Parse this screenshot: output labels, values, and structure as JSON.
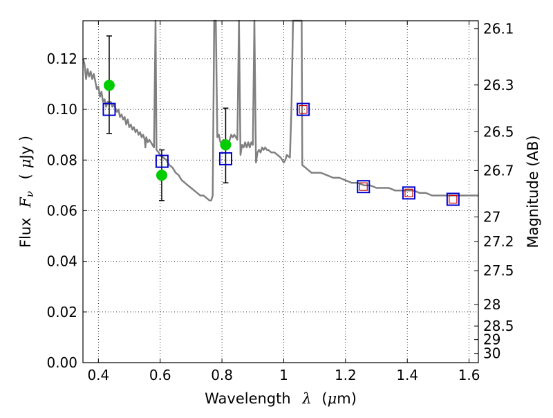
{
  "chart_data": {
    "type": "scatter",
    "xlabel": "Wavelength",
    "xlabel_symbol": "λ",
    "xlabel_unit_open": "(",
    "xlabel_unit_mu": "μ",
    "xlabel_unit_rest": "m)",
    "ylabel": "Flux",
    "ylabel_symbol": "F",
    "ylabel_sub": "ν",
    "ylabel_unit_open": "(",
    "ylabel_unit_mu": "μ",
    "ylabel_unit_rest": "Jy )",
    "y2label": "Magnitude (AB)",
    "xlim": [
      0.35,
      1.63
    ],
    "ylim": [
      0.0,
      0.135
    ],
    "grid": true,
    "x_ticks": [
      {
        "value": 0.4,
        "label": "0.4"
      },
      {
        "value": 0.6,
        "label": "0.6"
      },
      {
        "value": 0.8,
        "label": "0.8"
      },
      {
        "value": 1.0,
        "label": "1"
      },
      {
        "value": 1.2,
        "label": "1.2"
      },
      {
        "value": 1.4,
        "label": "1.4"
      },
      {
        "value": 1.6,
        "label": "1.6"
      }
    ],
    "y_ticks": [
      {
        "value": 0.0,
        "label": "0.00"
      },
      {
        "value": 0.02,
        "label": "0.02"
      },
      {
        "value": 0.04,
        "label": "0.04"
      },
      {
        "value": 0.06,
        "label": "0.06"
      },
      {
        "value": 0.08,
        "label": "0.08"
      },
      {
        "value": 0.1,
        "label": "0.10"
      },
      {
        "value": 0.12,
        "label": "0.12"
      }
    ],
    "mag_ticks": [
      {
        "value": 26.1,
        "label": "26.1"
      },
      {
        "value": 26.3,
        "label": "26.3"
      },
      {
        "value": 26.5,
        "label": "26.5"
      },
      {
        "value": 26.7,
        "label": "26.7"
      },
      {
        "value": 27.0,
        "label": "27"
      },
      {
        "value": 27.2,
        "label": "27.2"
      },
      {
        "value": 27.5,
        "label": "27.5"
      },
      {
        "value": 28.0,
        "label": "28"
      },
      {
        "value": 28.5,
        "label": "28.5"
      },
      {
        "value": 29.0,
        "label": "29"
      },
      {
        "value": 30.0,
        "label": "30"
      }
    ],
    "model_color": "#808080",
    "observed_color": "#00cc00",
    "model_phot_color": "#0000cc",
    "upper_color": "#cc0000",
    "model_spectrum": [
      [
        0.35,
        0.12
      ],
      [
        0.355,
        0.118
      ],
      [
        0.36,
        0.112
      ],
      [
        0.365,
        0.116
      ],
      [
        0.37,
        0.113
      ],
      [
        0.375,
        0.115
      ],
      [
        0.38,
        0.112
      ],
      [
        0.385,
        0.114
      ],
      [
        0.39,
        0.111
      ],
      [
        0.395,
        0.108
      ],
      [
        0.4,
        0.109
      ],
      [
        0.405,
        0.105
      ],
      [
        0.41,
        0.107
      ],
      [
        0.415,
        0.103
      ],
      [
        0.42,
        0.104
      ],
      [
        0.425,
        0.101
      ],
      [
        0.43,
        0.103
      ],
      [
        0.435,
        0.102
      ],
      [
        0.44,
        0.103
      ],
      [
        0.445,
        0.101
      ],
      [
        0.45,
        0.102
      ],
      [
        0.46,
        0.099
      ],
      [
        0.465,
        0.1
      ],
      [
        0.47,
        0.097
      ],
      [
        0.475,
        0.098
      ],
      [
        0.48,
        0.096
      ],
      [
        0.485,
        0.097
      ],
      [
        0.49,
        0.094
      ],
      [
        0.495,
        0.096
      ],
      [
        0.5,
        0.093
      ],
      [
        0.505,
        0.094
      ],
      [
        0.51,
        0.092
      ],
      [
        0.515,
        0.093
      ],
      [
        0.52,
        0.091
      ],
      [
        0.525,
        0.092
      ],
      [
        0.53,
        0.09
      ],
      [
        0.535,
        0.091
      ],
      [
        0.54,
        0.089
      ],
      [
        0.545,
        0.09
      ],
      [
        0.55,
        0.088
      ],
      [
        0.552,
        0.085
      ],
      [
        0.555,
        0.089
      ],
      [
        0.56,
        0.087
      ],
      [
        0.565,
        0.088
      ],
      [
        0.57,
        0.087
      ],
      [
        0.575,
        0.086
      ],
      [
        0.58,
        0.085
      ],
      [
        0.585,
        0.135
      ],
      [
        0.588,
        0.084
      ],
      [
        0.595,
        0.083
      ],
      [
        0.6,
        0.082
      ],
      [
        0.61,
        0.081
      ],
      [
        0.62,
        0.08
      ],
      [
        0.63,
        0.078
      ],
      [
        0.64,
        0.077
      ],
      [
        0.65,
        0.075
      ],
      [
        0.66,
        0.074
      ],
      [
        0.67,
        0.072
      ],
      [
        0.68,
        0.071
      ],
      [
        0.69,
        0.07
      ],
      [
        0.7,
        0.069
      ],
      [
        0.71,
        0.068
      ],
      [
        0.72,
        0.067
      ],
      [
        0.73,
        0.066
      ],
      [
        0.74,
        0.066
      ],
      [
        0.75,
        0.065
      ],
      [
        0.76,
        0.064
      ],
      [
        0.765,
        0.064
      ],
      [
        0.77,
        0.066
      ],
      [
        0.775,
        0.135
      ],
      [
        0.78,
        0.135
      ],
      [
        0.785,
        0.089
      ],
      [
        0.79,
        0.09
      ],
      [
        0.795,
        0.087
      ],
      [
        0.8,
        0.086
      ],
      [
        0.805,
        0.088
      ],
      [
        0.81,
        0.085
      ],
      [
        0.815,
        0.087
      ],
      [
        0.82,
        0.086
      ],
      [
        0.825,
        0.088
      ],
      [
        0.83,
        0.09
      ],
      [
        0.835,
        0.089
      ],
      [
        0.84,
        0.09
      ],
      [
        0.845,
        0.089
      ],
      [
        0.85,
        0.088
      ],
      [
        0.855,
        0.135
      ],
      [
        0.86,
        0.082
      ],
      [
        0.865,
        0.086
      ],
      [
        0.87,
        0.085
      ],
      [
        0.875,
        0.087
      ],
      [
        0.88,
        0.085
      ],
      [
        0.885,
        0.087
      ],
      [
        0.89,
        0.085
      ],
      [
        0.895,
        0.087
      ],
      [
        0.9,
        0.086
      ],
      [
        0.905,
        0.135
      ],
      [
        0.91,
        0.079
      ],
      [
        0.915,
        0.083
      ],
      [
        0.92,
        0.084
      ],
      [
        0.925,
        0.083
      ],
      [
        0.93,
        0.085
      ],
      [
        0.935,
        0.084
      ],
      [
        0.94,
        0.085
      ],
      [
        0.945,
        0.084
      ],
      [
        0.95,
        0.084
      ],
      [
        0.96,
        0.083
      ],
      [
        0.97,
        0.083
      ],
      [
        0.98,
        0.082
      ],
      [
        0.99,
        0.081
      ],
      [
        1.0,
        0.079
      ],
      [
        1.005,
        0.08
      ],
      [
        1.01,
        0.082
      ],
      [
        1.02,
        0.081
      ],
      [
        1.025,
        0.1
      ],
      [
        1.03,
        0.135
      ],
      [
        1.058,
        0.135
      ],
      [
        1.06,
        0.078
      ],
      [
        1.07,
        0.077
      ],
      [
        1.08,
        0.076
      ],
      [
        1.09,
        0.075
      ],
      [
        1.1,
        0.075
      ],
      [
        1.12,
        0.075
      ],
      [
        1.14,
        0.074
      ],
      [
        1.16,
        0.073
      ],
      [
        1.18,
        0.073
      ],
      [
        1.2,
        0.072
      ],
      [
        1.22,
        0.071
      ],
      [
        1.24,
        0.071
      ],
      [
        1.26,
        0.07
      ],
      [
        1.28,
        0.07
      ],
      [
        1.3,
        0.069
      ],
      [
        1.32,
        0.069
      ],
      [
        1.34,
        0.069
      ],
      [
        1.36,
        0.068
      ],
      [
        1.38,
        0.068
      ],
      [
        1.4,
        0.068
      ],
      [
        1.42,
        0.068
      ],
      [
        1.44,
        0.067
      ],
      [
        1.46,
        0.067
      ],
      [
        1.48,
        0.066
      ],
      [
        1.5,
        0.066
      ],
      [
        1.52,
        0.066
      ],
      [
        1.54,
        0.066
      ],
      [
        1.56,
        0.066
      ],
      [
        1.58,
        0.066
      ],
      [
        1.6,
        0.066
      ],
      [
        1.63,
        0.066
      ]
    ],
    "observed": [
      {
        "x": 0.435,
        "y": 0.1095,
        "yerr_low": 0.0905,
        "yerr_high": 0.129
      },
      {
        "x": 0.605,
        "y": 0.074,
        "yerr_low": 0.064,
        "yerr_high": 0.084
      },
      {
        "x": 0.812,
        "y": 0.086,
        "yerr_low": 0.071,
        "yerr_high": 0.1005
      }
    ],
    "model_photometry": [
      {
        "x": 0.435,
        "y": 0.1
      },
      {
        "x": 0.606,
        "y": 0.0795
      },
      {
        "x": 0.812,
        "y": 0.0805
      },
      {
        "x": 1.063,
        "y": 0.1
      },
      {
        "x": 1.258,
        "y": 0.0695
      },
      {
        "x": 1.405,
        "y": 0.067
      },
      {
        "x": 1.548,
        "y": 0.0645
      }
    ],
    "upper_photometry": [
      {
        "x": 1.063,
        "y": 0.1
      },
      {
        "x": 1.258,
        "y": 0.0695
      },
      {
        "x": 1.405,
        "y": 0.067
      },
      {
        "x": 1.548,
        "y": 0.0645
      }
    ]
  }
}
